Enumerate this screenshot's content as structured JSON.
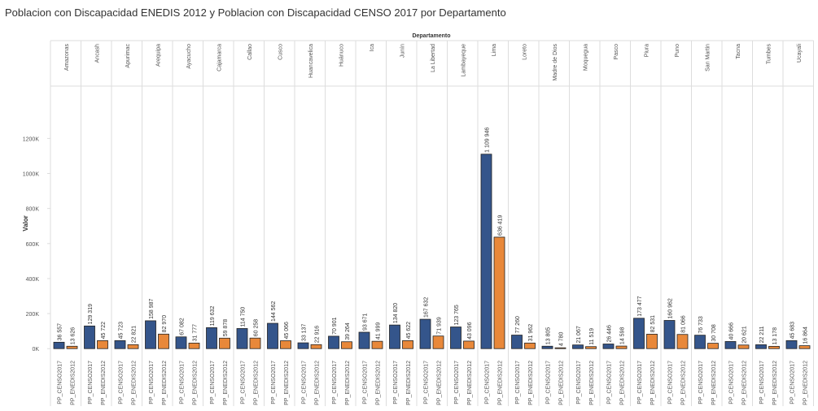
{
  "chart_data": {
    "type": "bar",
    "title": "Poblacion con Discapacidad ENEDIS 2012  y Poblacion con Discapacidad CENSO 2017 por Departamento",
    "column_header": "Departamento",
    "y_label": "Valor",
    "categories": [
      "Amazonas",
      "Ancash",
      "Apurimac",
      "Arequipa",
      "Ayacucho",
      "Cajamarca",
      "Callao",
      "Cusco",
      "Huancavelica",
      "Huánuco",
      "Ica",
      "Junín",
      "La Libertad",
      "Lambayeque",
      "Lima",
      "Loreto",
      "Madre de Dios",
      "Moquegua",
      "Pasco",
      "Piura",
      "Puno",
      "San Martin",
      "Tacna",
      "Tumbes",
      "Ucayali"
    ],
    "series": [
      {
        "name": "PP_CENSO2017",
        "color": "#34558b",
        "values": [
          36557,
          129319,
          45723,
          158987,
          67082,
          119632,
          114750,
          144562,
          33137,
          70901,
          93671,
          134820,
          167632,
          123765,
          1109946,
          77260,
          13805,
          21067,
          26446,
          173477,
          160962,
          76733,
          40666,
          22211,
          45683
        ],
        "value_labels": [
          "36 557",
          "129 319",
          "45 723",
          "158 987",
          "67 082",
          "119 632",
          "114 750",
          "144 562",
          "33 137",
          "70 901",
          "93 671",
          "134 820",
          "167 632",
          "123 765",
          "1 109 946",
          "77 260",
          "13 805",
          "21 067",
          "26 446",
          "173 477",
          "160 962",
          "76 733",
          "40 666",
          "22 211",
          "45 683"
        ]
      },
      {
        "name": "PP_ENEDIS2012",
        "color": "#e8883a",
        "values": [
          13626,
          45722,
          22821,
          82970,
          31777,
          59878,
          60258,
          45066,
          22916,
          39264,
          41999,
          45622,
          71939,
          43096,
          636419,
          31962,
          4780,
          11519,
          14598,
          82531,
          81066,
          30708,
          20621,
          13178,
          16864
        ],
        "value_labels": [
          "13 626",
          "45 722",
          "22 821",
          "82 970",
          "31 777",
          "59 878",
          "60 258",
          "45 066",
          "22 916",
          "39 264",
          "41 999",
          "45 622",
          "71 939",
          "43 096",
          "636 419",
          "31 962",
          "4 780",
          "11 519",
          "14 598",
          "82 531",
          "81 066",
          "30 708",
          "20 621",
          "13 178",
          "16 864"
        ]
      }
    ],
    "ylim": [
      -50000,
      1480000
    ],
    "yticks": [
      {
        "value": 0,
        "label": "0K"
      },
      {
        "value": 200000,
        "label": "200K"
      },
      {
        "value": 400000,
        "label": "400K"
      },
      {
        "value": 600000,
        "label": "600K"
      },
      {
        "value": 800000,
        "label": "800K"
      },
      {
        "value": 1000000,
        "label": "1000K"
      },
      {
        "value": 1200000,
        "label": "1200K"
      }
    ],
    "grid": false
  }
}
